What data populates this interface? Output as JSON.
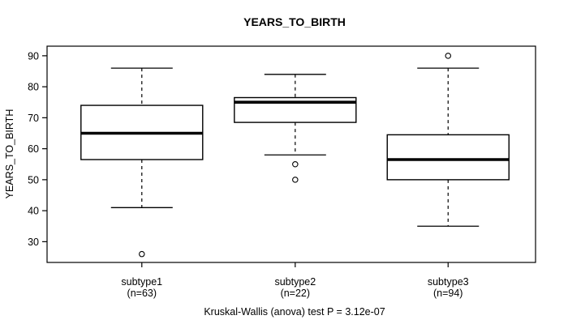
{
  "chart_data": {
    "type": "boxplot",
    "title": "YEARS_TO_BIRTH",
    "ylabel": "YEARS_TO_BIRTH",
    "xlabel": "",
    "caption": "Kruskal-Wallis (anova) test P = 3.12e-07",
    "grid": false,
    "legend": "none",
    "y_ticks": [
      30,
      40,
      50,
      60,
      70,
      80,
      90
    ],
    "ylim": [
      23.3,
      93.1
    ],
    "groups": [
      {
        "label": "subtype1",
        "n_label": "(n=63)",
        "n": 63,
        "whisker_low": 41,
        "q1": 56.5,
        "median": 65,
        "q3": 74,
        "whisker_high": 86,
        "outliers": [
          26
        ]
      },
      {
        "label": "subtype2",
        "n_label": "(n=22)",
        "n": 22,
        "whisker_low": 58,
        "q1": 68.5,
        "median": 75,
        "q3": 76.5,
        "whisker_high": 84,
        "outliers": [
          55,
          50
        ]
      },
      {
        "label": "subtype3",
        "n_label": "(n=94)",
        "n": 94,
        "whisker_low": 35,
        "q1": 50,
        "median": 56.5,
        "q3": 64.5,
        "whisker_high": 86,
        "outliers": [
          90
        ]
      }
    ],
    "colors": {
      "line": "#000000",
      "box_fill": "#ffffff",
      "background": "#ffffff"
    }
  }
}
